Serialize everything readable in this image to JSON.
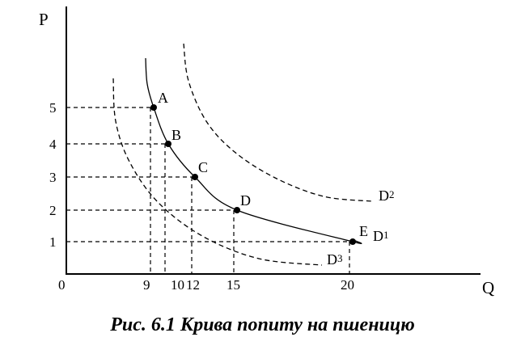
{
  "caption": "Рис. 6.1 Крива попиту на пшеницю",
  "chart_data": {
    "type": "line",
    "xlabel": "Q",
    "ylabel": "P",
    "origin_label": "0",
    "x_ticks": [
      "9",
      "10",
      "12",
      "15",
      "20"
    ],
    "y_ticks": [
      "1",
      "2",
      "3",
      "4",
      "5"
    ],
    "points": [
      {
        "label": "A",
        "q": 9,
        "p": 5
      },
      {
        "label": "B",
        "q": 10,
        "p": 4
      },
      {
        "label": "C",
        "q": 12,
        "p": 3
      },
      {
        "label": "D",
        "q": 15,
        "p": 2
      },
      {
        "label": "E",
        "q": 20,
        "p": 1
      }
    ],
    "curves": [
      {
        "name": "D",
        "subscript": "1",
        "style": "solid"
      },
      {
        "name": "D",
        "subscript": "2",
        "style": "dashed"
      },
      {
        "name": "D",
        "subscript": "3",
        "style": "dashed"
      }
    ],
    "grid": false
  }
}
